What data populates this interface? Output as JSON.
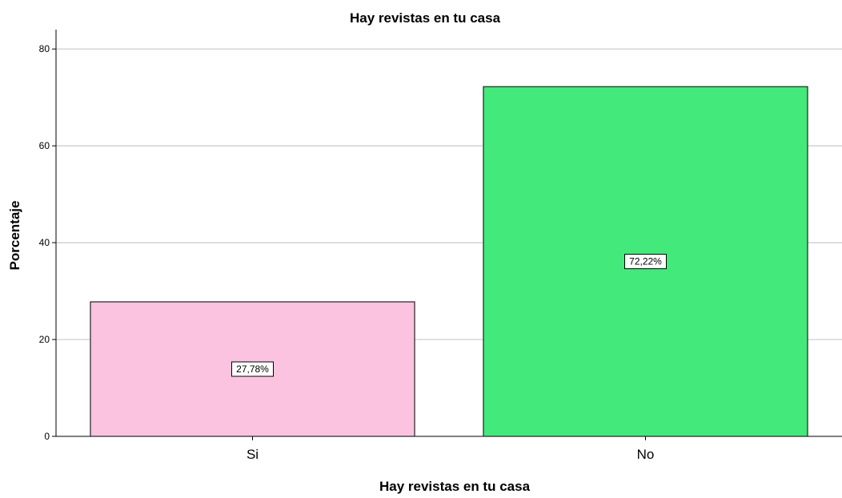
{
  "chart_data": {
    "type": "bar",
    "title": "Hay revistas en tu casa",
    "xlabel": "Hay revistas en tu casa",
    "ylabel": "Porcentaje",
    "categories": [
      "Si",
      "No"
    ],
    "values": [
      27.78,
      72.22
    ],
    "data_labels": [
      "27,78%",
      "72,22%"
    ],
    "colors": [
      "#fcc3e0",
      "#43e97b"
    ],
    "ylim": [
      0,
      84
    ],
    "yticks": [
      0,
      20,
      40,
      60,
      80
    ],
    "grid": true
  }
}
